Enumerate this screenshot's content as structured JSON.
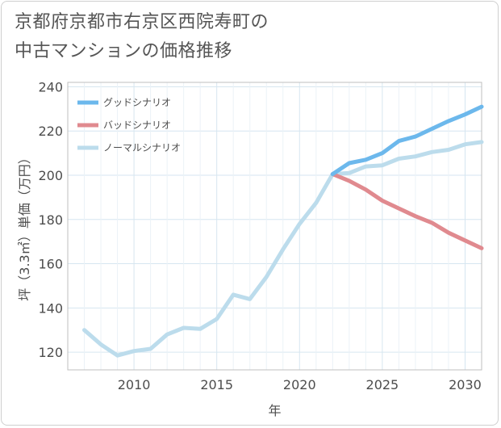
{
  "title": {
    "line1": "京都府京都市右京区西院寿町の",
    "line2": "中古マンションの価格推移"
  },
  "chart_data": {
    "type": "line",
    "xlabel": "年",
    "ylabel": "坪（3.3㎡）単価（万円）",
    "xlim": [
      2006,
      2031
    ],
    "ylim": [
      112,
      242
    ],
    "x_ticks": [
      2010,
      2015,
      2020,
      2025,
      2030
    ],
    "y_ticks": [
      120,
      140,
      160,
      180,
      200,
      220,
      240
    ],
    "grid": true,
    "legend_position": "top-left",
    "series": [
      {
        "name": "グッドシナリオ",
        "color": "#6cb8ec",
        "x": [
          2022,
          2023,
          2024,
          2025,
          2026,
          2027,
          2028,
          2029,
          2030,
          2031
        ],
        "values": [
          200.5,
          205.5,
          207,
          210,
          215.5,
          217.5,
          221,
          224.5,
          227.5,
          231
        ]
      },
      {
        "name": "バッドシナリオ",
        "color": "#e08a8f",
        "x": [
          2022,
          2023,
          2024,
          2025,
          2026,
          2027,
          2028,
          2029,
          2030,
          2031
        ],
        "values": [
          200.5,
          197.5,
          193.5,
          188.5,
          185,
          181.5,
          178.5,
          174,
          170.5,
          167
        ]
      },
      {
        "name": "ノーマルシナリオ",
        "color": "#bcdcec",
        "x": [
          2007,
          2008,
          2009,
          2010,
          2011,
          2012,
          2013,
          2014,
          2015,
          2016,
          2017,
          2018,
          2019,
          2020,
          2021,
          2022,
          2023,
          2024,
          2025,
          2026,
          2027,
          2028,
          2029,
          2030,
          2031
        ],
        "values": [
          130,
          123.5,
          118.5,
          120.5,
          121.5,
          128,
          131,
          130.5,
          135,
          146,
          144,
          154,
          166.5,
          178,
          187.5,
          200.5,
          201,
          204,
          204.5,
          207.5,
          208.5,
          210.5,
          211.5,
          214,
          215
        ]
      }
    ]
  }
}
